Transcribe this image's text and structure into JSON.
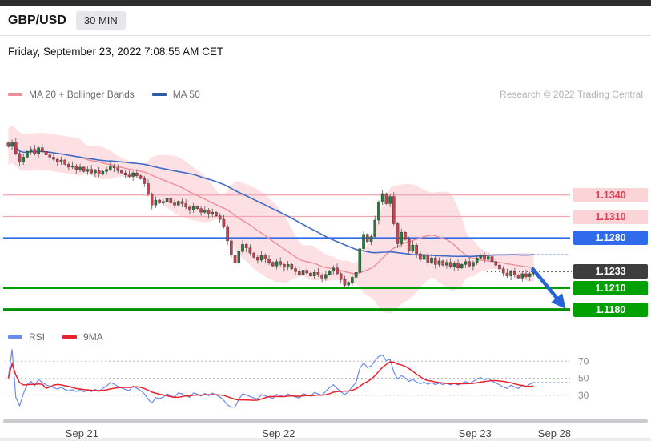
{
  "header": {
    "symbol": "GBP/USD",
    "timeframe": "30 MIN",
    "datetime": "Friday, September 23, 2022 7:08:55 AM CET"
  },
  "legend": {
    "ma_bb": "MA 20 + Bollinger Bands",
    "ma50": "MA 50",
    "research": "Research © 2022 Trading Central"
  },
  "rsi_legend": {
    "rsi": "RSI",
    "ma9": "9MA"
  },
  "colors": {
    "up": "#2a7a3b",
    "down": "#c84150",
    "wick": "#555555",
    "bb_fill": "rgba(247,166,178,0.35)",
    "ma20": "#f08e98",
    "ma50": "#3f6bc6",
    "resistance_line": "#f2a6ae",
    "resistance_label_bg": "#fbd4d8",
    "resistance_label_text": "#e23b4e",
    "pivot": "#2f6bea",
    "support": "#00a000",
    "support_dark": "#008f00",
    "last_line": "#333333",
    "last_bg": "#3d3d3d",
    "rsi": "#6b8af2",
    "rsi_ma": "#e8232d",
    "arrow": "#2563d6",
    "grid": "#bbbbbb",
    "axis_text": "#8a8a8a"
  },
  "chart_data": {
    "type": "candlestick",
    "title": "GBP/USD 30 MIN with MA20 + Bollinger Bands, MA50, RSI(14) + 9MA",
    "timeframe_minutes": 30,
    "closes": [
      1.1408,
      1.1414,
      1.1398,
      1.1386,
      1.1393,
      1.1401,
      1.1404,
      1.1398,
      1.1406,
      1.1401,
      1.1396,
      1.1393,
      1.139,
      1.1386,
      1.1389,
      1.1383,
      1.1379,
      1.1381,
      1.1376,
      1.1379,
      1.1373,
      1.1376,
      1.1371,
      1.1374,
      1.1369,
      1.1373,
      1.1376,
      1.1381,
      1.1378,
      1.1374,
      1.1371,
      1.1368,
      1.1366,
      1.1371,
      1.1367,
      1.1363,
      1.1356,
      1.1341,
      1.1326,
      1.1333,
      1.1329,
      1.1331,
      1.1335,
      1.1329,
      1.1326,
      1.1331,
      1.1328,
      1.1323,
      1.1319,
      1.1324,
      1.1321,
      1.1316,
      1.1319,
      1.1313,
      1.1316,
      1.1311,
      1.1306,
      1.1296,
      1.1276,
      1.1256,
      1.1246,
      1.1261,
      1.1271,
      1.1266,
      1.1259,
      1.1253,
      1.1249,
      1.1256,
      1.1251,
      1.1246,
      1.1241,
      1.1247,
      1.1243,
      1.1239,
      1.1243,
      1.1237,
      1.1233,
      1.1229,
      1.1235,
      1.1231,
      1.1227,
      1.1232,
      1.1228,
      1.1224,
      1.1229,
      1.1234,
      1.1238,
      1.123,
      1.1222,
      1.1214,
      1.1218,
      1.1225,
      1.1232,
      1.1265,
      1.1285,
      1.1275,
      1.1282,
      1.1305,
      1.133,
      1.1342,
      1.1328,
      1.1338,
      1.13,
      1.1272,
      1.1288,
      1.1278,
      1.1262,
      1.127,
      1.1258,
      1.125,
      1.1256,
      1.1246,
      1.1252,
      1.1243,
      1.1248,
      1.1242,
      1.1246,
      1.124,
      1.1245,
      1.1238,
      1.1243,
      1.1247,
      1.1241,
      1.1246,
      1.1252,
      1.1256,
      1.125,
      1.1254,
      1.1247,
      1.1242,
      1.1237,
      1.1231,
      1.1227,
      1.1233,
      1.1228,
      1.1224,
      1.123,
      1.1226,
      1.123,
      1.1233
    ],
    "indicators": {
      "ma_fast": 20,
      "ma_slow": 50,
      "bollinger_stddev": 2,
      "rsi_period": 14,
      "rsi_ma": 9
    },
    "price_axis": {
      "max": 1.1445,
      "min": 1.1165
    },
    "levels": [
      {
        "price": 1.134,
        "label": "1.1340",
        "kind": "resistance",
        "line_width": 1.2
      },
      {
        "price": 1.131,
        "label": "1.1310",
        "kind": "resistance",
        "line_width": 1.2
      },
      {
        "price": 1.128,
        "label": "1.1280",
        "kind": "pivot",
        "line_width": 2
      },
      {
        "price": 1.1233,
        "label": "1.1233",
        "kind": "last",
        "line_width": 1
      },
      {
        "price": 1.121,
        "label": "1.1210",
        "kind": "support",
        "line_width": 2.4
      },
      {
        "price": 1.118,
        "label": "1.1180",
        "kind": "support",
        "line_width": 3
      }
    ],
    "x_ticks": [
      {
        "label": "Sep 21",
        "index": 20
      },
      {
        "label": "Sep 22",
        "index": 72
      },
      {
        "label": "Sep 23",
        "index": 124
      },
      {
        "label": "Sep 28",
        "index": 145
      }
    ],
    "rsi_axis": {
      "ticks": [
        70,
        50,
        30
      ],
      "min": 10,
      "max": 90
    },
    "forecast_arrow": {
      "from_price": 1.1238,
      "to_price": 1.1187,
      "direction": "down"
    }
  }
}
